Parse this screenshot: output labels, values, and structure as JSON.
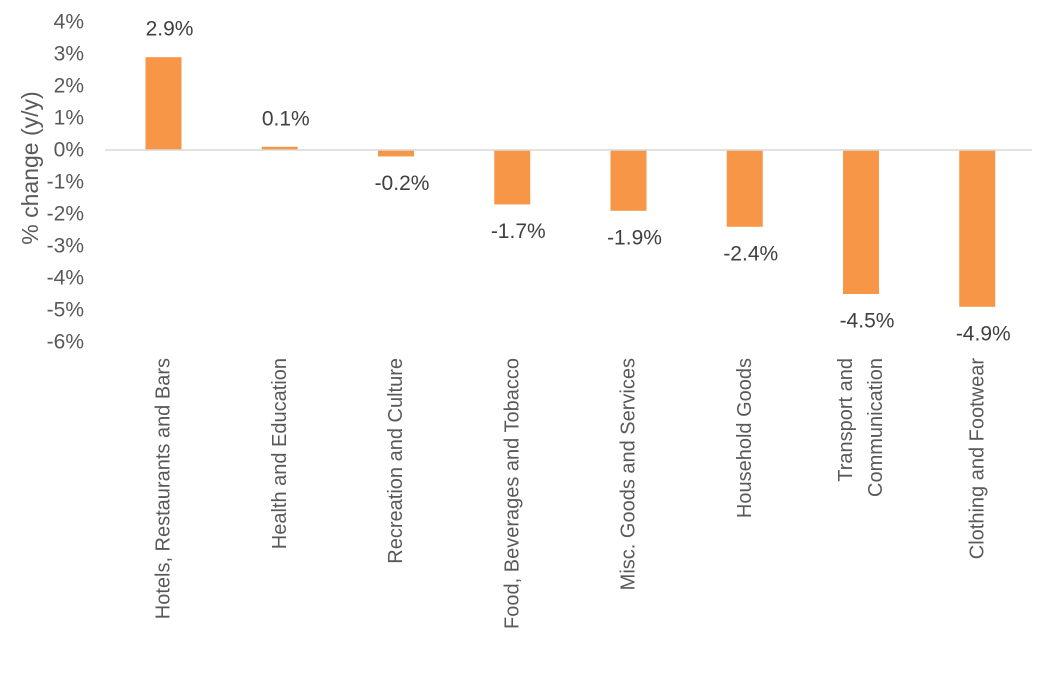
{
  "chart_data": {
    "type": "bar",
    "title": "",
    "xlabel": "",
    "ylabel": "% change (y/y)",
    "ylim": [
      -6,
      4
    ],
    "yticks": [
      "4%",
      "3%",
      "2%",
      "1%",
      "0%",
      "-1%",
      "-2%",
      "-3%",
      "-4%",
      "-5%",
      "-6%"
    ],
    "grid": false,
    "legend": "none",
    "bar_color": "#F79646",
    "categories": [
      [
        "Hotels, Restaurants and Bars"
      ],
      [
        "Health and Education"
      ],
      [
        "Recreation and Culture"
      ],
      [
        "Food, Beverages and Tobacco"
      ],
      [
        "Misc. Goods and Services"
      ],
      [
        "Household Goods"
      ],
      [
        "Transport and",
        "Communication"
      ],
      [
        "Clothing and Footwear"
      ]
    ],
    "values": [
      2.9,
      0.1,
      -0.2,
      -1.7,
      -1.9,
      -2.4,
      -4.5,
      -4.9
    ],
    "data_labels": [
      "2.9%",
      "0.1%",
      "-0.2%",
      "-1.7%",
      "-1.9%",
      "-2.4%",
      "-4.5%",
      "-4.9%"
    ]
  }
}
